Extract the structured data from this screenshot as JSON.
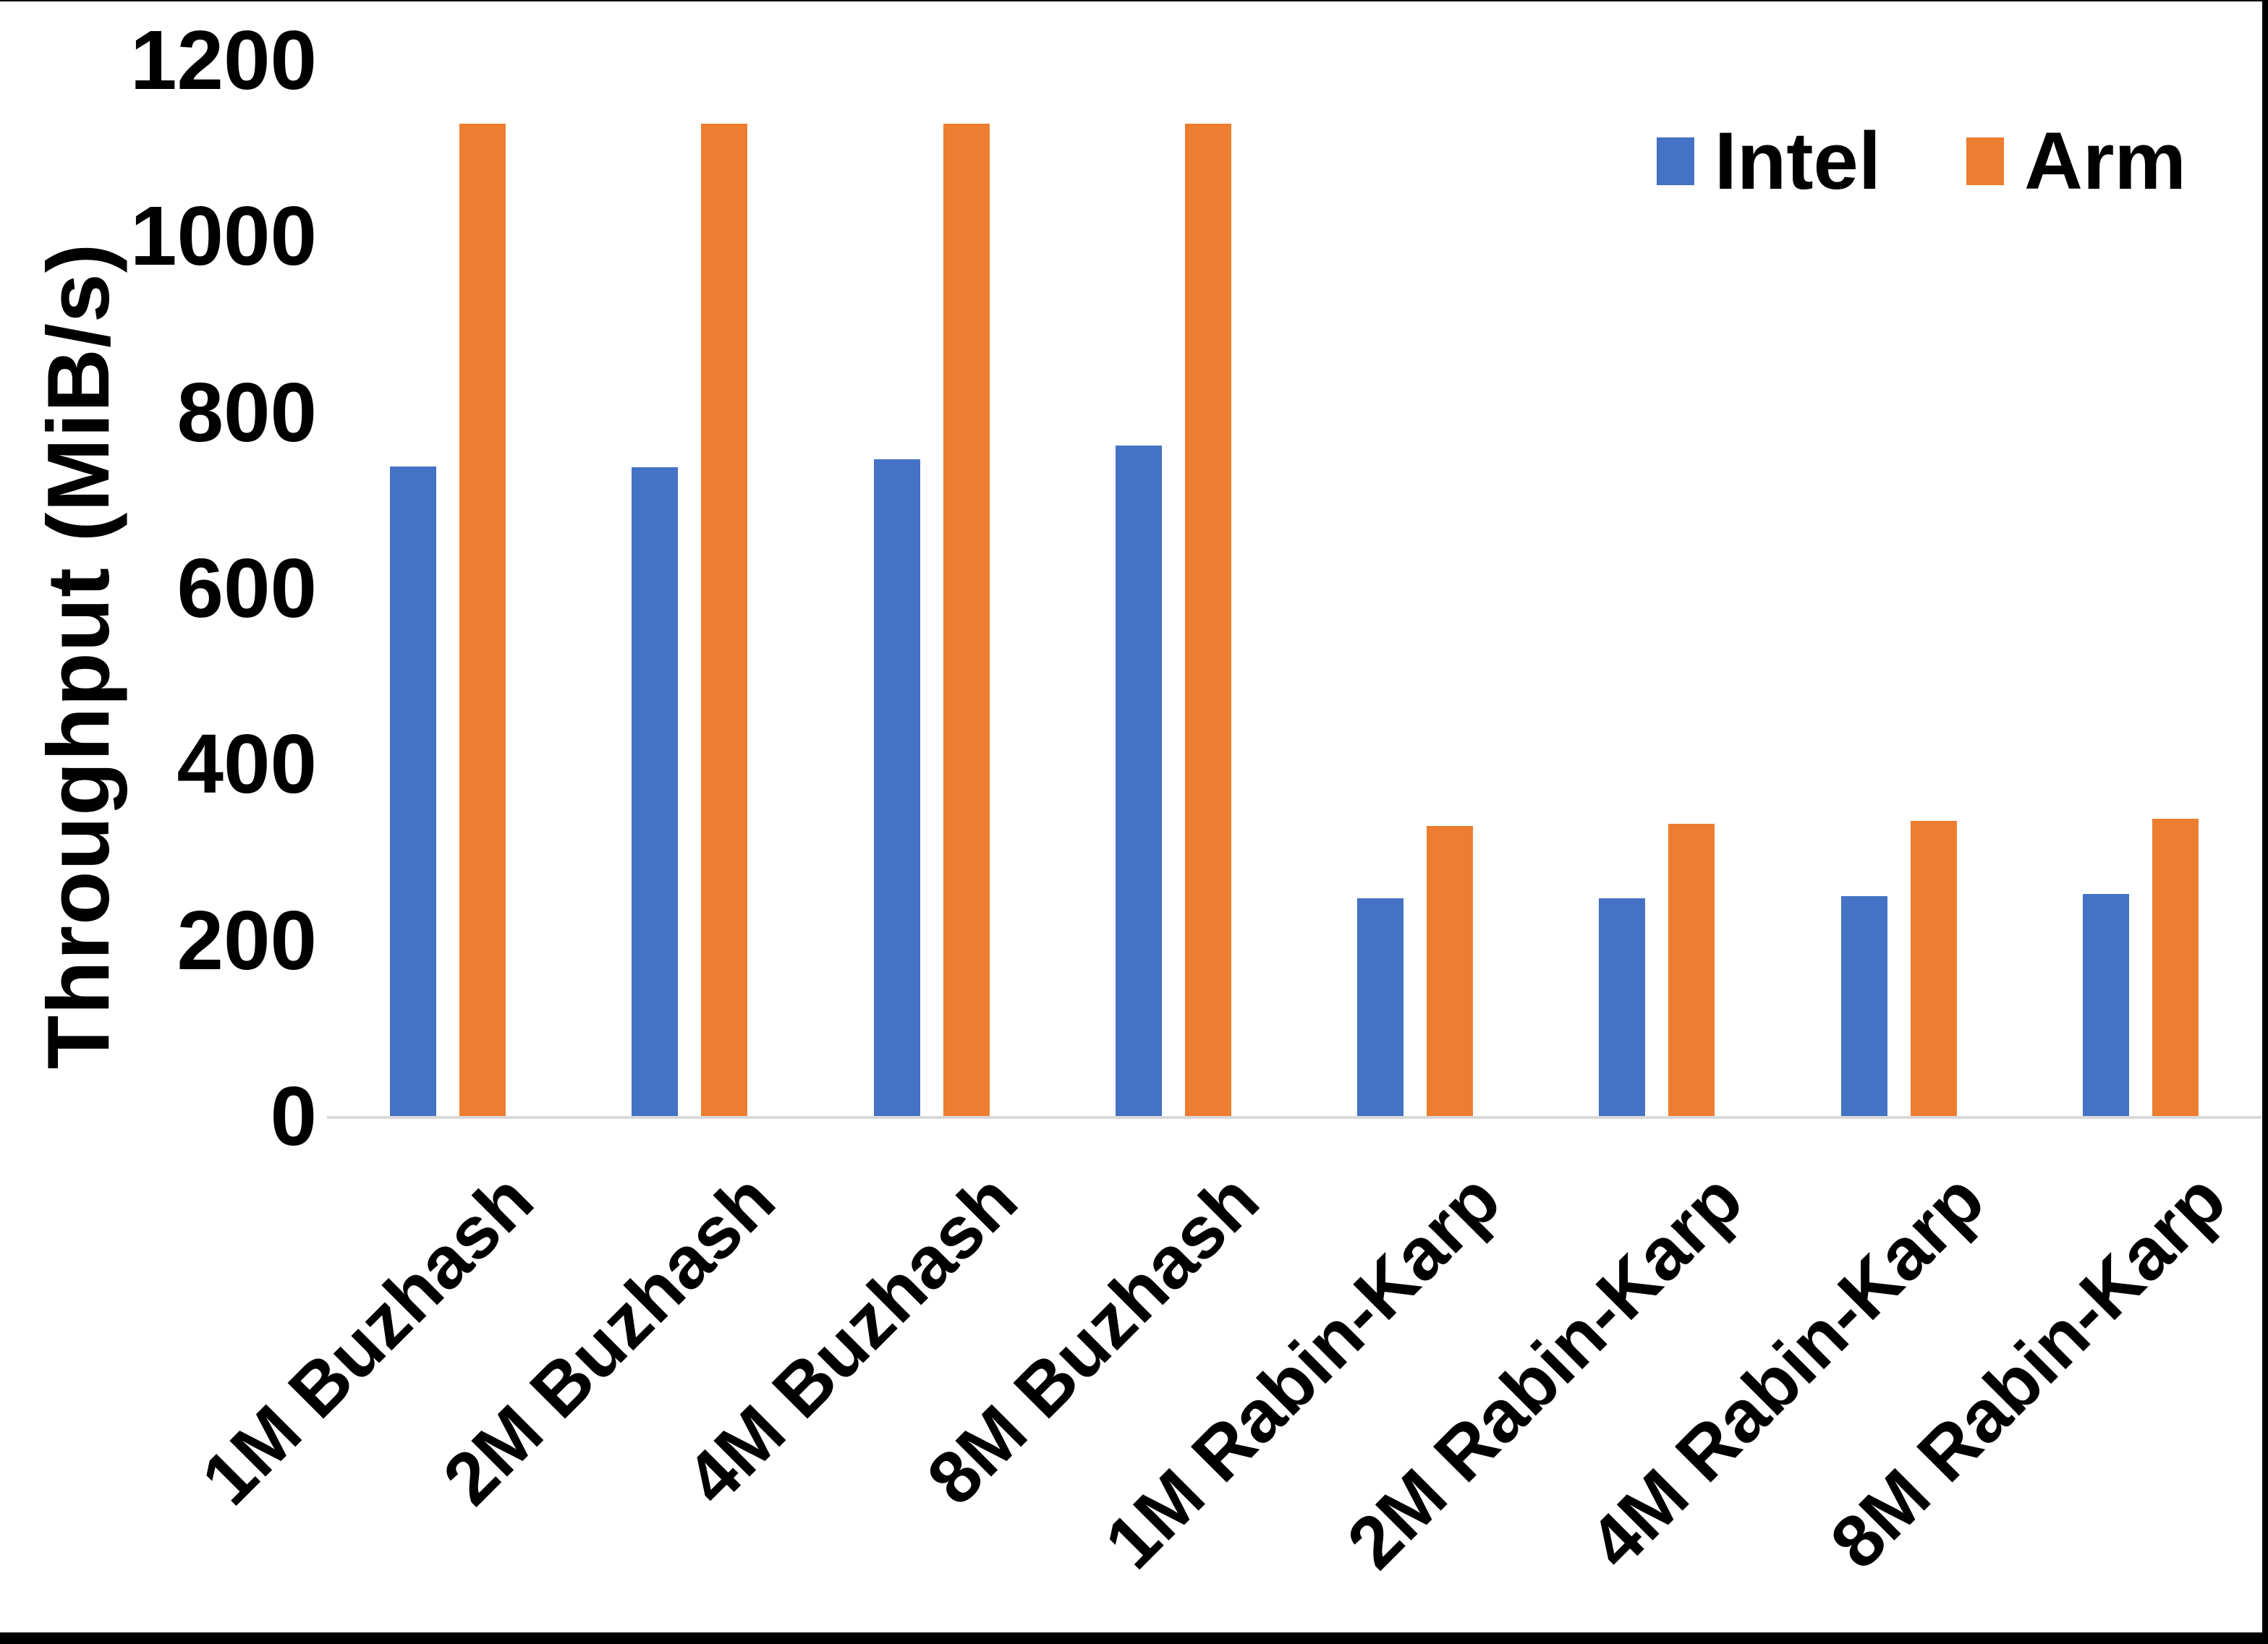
{
  "figure": {
    "background": "#ffffff",
    "frame_color": "#000000",
    "axis_line_color": "#d9d9d9",
    "text_color": "#000000"
  },
  "chart_data": {
    "type": "bar",
    "title": "",
    "xlabel": "",
    "ylabel": "Throughput (MiB/s)",
    "ylim": [
      0,
      1200
    ],
    "yticks": [
      0,
      200,
      400,
      600,
      800,
      1000,
      1200
    ],
    "grid": false,
    "legend_position": "top-right",
    "x_tick_rotation_deg": 45,
    "categories": [
      "1M Buzhash",
      "2M Buzhash",
      "4M Buzhash",
      "8M Buzhash",
      "1M Rabin-Karp",
      "2M Rabin-Karp",
      "4M Rabin-Karp",
      "8M Rabin-Karp"
    ],
    "series": [
      {
        "name": "Intel",
        "color": "#4472C4",
        "values": [
          738,
          737,
          746,
          762,
          247,
          247,
          250,
          252
        ]
      },
      {
        "name": "Arm",
        "color": "#ED7D31",
        "values": [
          1128,
          1128,
          1128,
          1128,
          330,
          332,
          335,
          338
        ]
      }
    ]
  }
}
